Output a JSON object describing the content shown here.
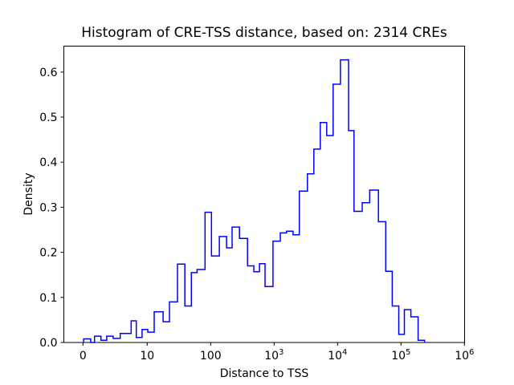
{
  "title": "Histogram of CRE-TSS distance, based on: 2314 CREs",
  "x_axis": {
    "label": "Distance to TSS",
    "scale": "symlog",
    "linthresh": 10,
    "range": [
      0,
      1000000
    ],
    "ticks": [
      {
        "value": 0,
        "label": "0"
      },
      {
        "value": 10,
        "label": "10"
      },
      {
        "value": 100,
        "label": "100"
      },
      {
        "value": 1000,
        "base": "10",
        "exp": "3"
      },
      {
        "value": 10000,
        "base": "10",
        "exp": "4"
      },
      {
        "value": 100000,
        "base": "10",
        "exp": "5"
      },
      {
        "value": 1000000,
        "base": "10",
        "exp": "6"
      }
    ]
  },
  "y_axis": {
    "label": "Density",
    "range": [
      0.0,
      0.657
    ],
    "ticks": [
      {
        "value": 0.0,
        "label": "0.0"
      },
      {
        "value": 0.1,
        "label": "0.1"
      },
      {
        "value": 0.2,
        "label": "0.2"
      },
      {
        "value": 0.3,
        "label": "0.3"
      },
      {
        "value": 0.4,
        "label": "0.4"
      },
      {
        "value": 0.5,
        "label": "0.5"
      },
      {
        "value": 0.6,
        "label": "0.6"
      }
    ]
  },
  "chart_data": {
    "type": "bar",
    "subtype": "step-histogram",
    "title": "Histogram of CRE-TSS distance, based on: 2314 CREs",
    "xlabel": "Distance to TSS",
    "ylabel": "Density",
    "n_cres": 2314,
    "line_color": "#0000ff",
    "line_width": 1.5,
    "grid": false,
    "legend": "none",
    "bins_note": "bins are ~0.1 decade wide in log10 space; entries are [x_from, x_to, density]",
    "steps": [
      [
        0.1,
        1.2,
        0.008
      ],
      [
        1.2,
        1.8,
        0.0
      ],
      [
        1.8,
        2.8,
        0.014
      ],
      [
        2.8,
        3.7,
        0.005
      ],
      [
        3.7,
        4.7,
        0.014
      ],
      [
        4.7,
        5.8,
        0.009
      ],
      [
        5.8,
        7.5,
        0.02
      ],
      [
        7.5,
        8.3,
        0.048
      ],
      [
        8.3,
        9.2,
        0.011
      ],
      [
        9.2,
        10.2,
        0.029
      ],
      [
        10.2,
        12.9,
        0.023
      ],
      [
        12.9,
        17.8,
        0.068
      ],
      [
        17.8,
        22.4,
        0.046
      ],
      [
        22.4,
        30,
        0.09
      ],
      [
        30,
        39.2,
        0.174
      ],
      [
        39.2,
        49.7,
        0.081
      ],
      [
        49.7,
        61.1,
        0.155
      ],
      [
        61.1,
        81.5,
        0.162
      ],
      [
        81.5,
        103,
        0.289
      ],
      [
        103,
        137,
        0.192
      ],
      [
        137,
        178,
        0.235
      ],
      [
        178,
        218,
        0.21
      ],
      [
        218,
        285,
        0.256
      ],
      [
        285,
        381,
        0.231
      ],
      [
        381,
        480,
        0.17
      ],
      [
        480,
        588,
        0.157
      ],
      [
        588,
        719,
        0.175
      ],
      [
        719,
        961,
        0.124
      ],
      [
        961,
        1250,
        0.225
      ],
      [
        1250,
        1570,
        0.243
      ],
      [
        1570,
        1990,
        0.247
      ],
      [
        1990,
        2500,
        0.239
      ],
      [
        2500,
        3350,
        0.336
      ],
      [
        3350,
        4230,
        0.374
      ],
      [
        4230,
        5340,
        0.429
      ],
      [
        5340,
        6740,
        0.488
      ],
      [
        6740,
        8510,
        0.459
      ],
      [
        8510,
        11100,
        0.573
      ],
      [
        11100,
        14900,
        0.627
      ],
      [
        14900,
        18200,
        0.47
      ],
      [
        18200,
        24500,
        0.291
      ],
      [
        24500,
        32100,
        0.31
      ],
      [
        32100,
        44100,
        0.338
      ],
      [
        44100,
        57500,
        0.268
      ],
      [
        57500,
        72800,
        0.158
      ],
      [
        72800,
        92200,
        0.081
      ],
      [
        92200,
        113000,
        0.018
      ],
      [
        113000,
        143000,
        0.073
      ],
      [
        143000,
        186000,
        0.057
      ],
      [
        186000,
        235000,
        0.005
      ]
    ]
  }
}
